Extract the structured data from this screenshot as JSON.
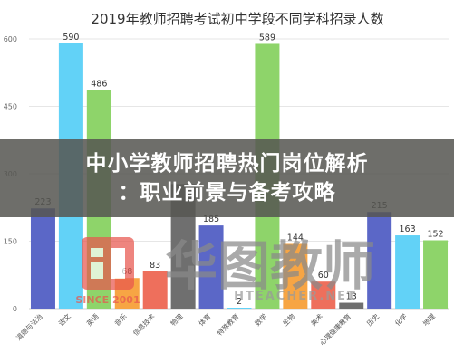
{
  "overlay": {
    "line1": "中小学教师招聘热门岗位解析",
    "line2": "：职业前景与备考攻略"
  },
  "watermark": {
    "brand": "华图教师",
    "since": "SINCE 2001",
    "site": "HTEACHER.NET"
  },
  "chart_data": {
    "type": "bar",
    "title": "2019年教师招聘考试初中学段不同学科招录人数",
    "xlabel": "",
    "ylabel": "",
    "ylim": [
      0,
      600
    ],
    "yticks": [
      0,
      150,
      300,
      450,
      600
    ],
    "grid": true,
    "categories": [
      "道德与法治",
      "语文",
      "英语",
      "音乐",
      "信息技术",
      "物理",
      "体育",
      "特殊教育",
      "数学",
      "生物",
      "美术",
      "心理健康教育",
      "历史",
      "化学",
      "地理"
    ],
    "values": [
      223,
      590,
      486,
      68,
      83,
      277,
      185,
      2,
      589,
      144,
      60,
      13,
      215,
      163,
      152
    ],
    "value_labels": [
      "223",
      "590",
      "486",
      "68",
      "83",
      "",
      "185",
      "2",
      "589",
      "144",
      "60",
      "13",
      "215",
      "163",
      "152"
    ],
    "colors": [
      "#5b67c7",
      "#62d2f7",
      "#8ed46a",
      "#f7a544",
      "#ee6f5c",
      "#6f6f6f",
      "#5b67c7",
      "#62d2f7",
      "#8ed46a",
      "#f7a544",
      "#ee6f5c",
      "#6f6f6f",
      "#5b67c7",
      "#62d2f7",
      "#8ed46a"
    ]
  }
}
